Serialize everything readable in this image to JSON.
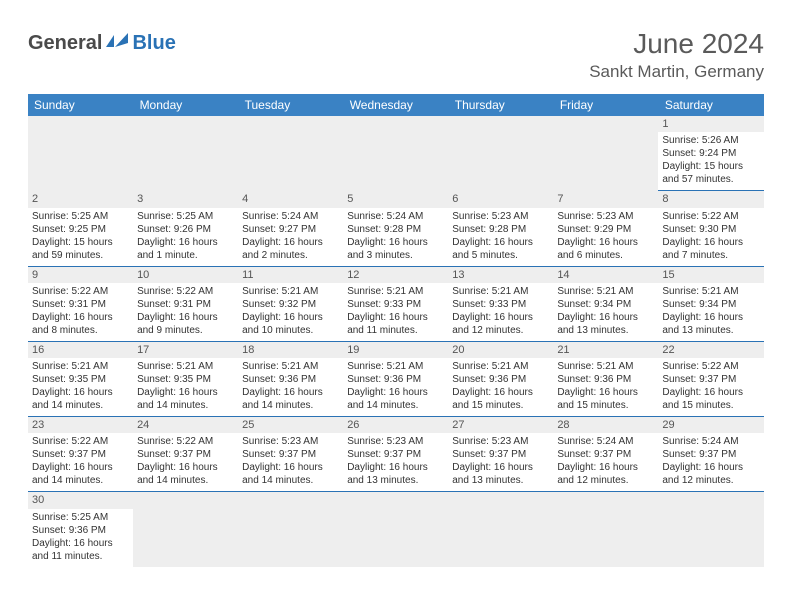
{
  "brand": {
    "general": "General",
    "blue": "Blue"
  },
  "title": "June 2024",
  "location": "Sankt Martin, Germany",
  "colors": {
    "header_bg": "#3a82c4",
    "header_text": "#ffffff",
    "accent": "#2a72b5",
    "day_bg": "#eeeeee",
    "text": "#333333",
    "title_text": "#5a5a5a"
  },
  "weekdays": [
    "Sunday",
    "Monday",
    "Tuesday",
    "Wednesday",
    "Thursday",
    "Friday",
    "Saturday"
  ],
  "weeks": [
    [
      null,
      null,
      null,
      null,
      null,
      null,
      {
        "n": "1",
        "sr": "5:26 AM",
        "ss": "9:24 PM",
        "dl": "15 hours and 57 minutes."
      }
    ],
    [
      {
        "n": "2",
        "sr": "5:25 AM",
        "ss": "9:25 PM",
        "dl": "15 hours and 59 minutes."
      },
      {
        "n": "3",
        "sr": "5:25 AM",
        "ss": "9:26 PM",
        "dl": "16 hours and 1 minute."
      },
      {
        "n": "4",
        "sr": "5:24 AM",
        "ss": "9:27 PM",
        "dl": "16 hours and 2 minutes."
      },
      {
        "n": "5",
        "sr": "5:24 AM",
        "ss": "9:28 PM",
        "dl": "16 hours and 3 minutes."
      },
      {
        "n": "6",
        "sr": "5:23 AM",
        "ss": "9:28 PM",
        "dl": "16 hours and 5 minutes."
      },
      {
        "n": "7",
        "sr": "5:23 AM",
        "ss": "9:29 PM",
        "dl": "16 hours and 6 minutes."
      },
      {
        "n": "8",
        "sr": "5:22 AM",
        "ss": "9:30 PM",
        "dl": "16 hours and 7 minutes."
      }
    ],
    [
      {
        "n": "9",
        "sr": "5:22 AM",
        "ss": "9:31 PM",
        "dl": "16 hours and 8 minutes."
      },
      {
        "n": "10",
        "sr": "5:22 AM",
        "ss": "9:31 PM",
        "dl": "16 hours and 9 minutes."
      },
      {
        "n": "11",
        "sr": "5:21 AM",
        "ss": "9:32 PM",
        "dl": "16 hours and 10 minutes."
      },
      {
        "n": "12",
        "sr": "5:21 AM",
        "ss": "9:33 PM",
        "dl": "16 hours and 11 minutes."
      },
      {
        "n": "13",
        "sr": "5:21 AM",
        "ss": "9:33 PM",
        "dl": "16 hours and 12 minutes."
      },
      {
        "n": "14",
        "sr": "5:21 AM",
        "ss": "9:34 PM",
        "dl": "16 hours and 13 minutes."
      },
      {
        "n": "15",
        "sr": "5:21 AM",
        "ss": "9:34 PM",
        "dl": "16 hours and 13 minutes."
      }
    ],
    [
      {
        "n": "16",
        "sr": "5:21 AM",
        "ss": "9:35 PM",
        "dl": "16 hours and 14 minutes."
      },
      {
        "n": "17",
        "sr": "5:21 AM",
        "ss": "9:35 PM",
        "dl": "16 hours and 14 minutes."
      },
      {
        "n": "18",
        "sr": "5:21 AM",
        "ss": "9:36 PM",
        "dl": "16 hours and 14 minutes."
      },
      {
        "n": "19",
        "sr": "5:21 AM",
        "ss": "9:36 PM",
        "dl": "16 hours and 14 minutes."
      },
      {
        "n": "20",
        "sr": "5:21 AM",
        "ss": "9:36 PM",
        "dl": "16 hours and 15 minutes."
      },
      {
        "n": "21",
        "sr": "5:21 AM",
        "ss": "9:36 PM",
        "dl": "16 hours and 15 minutes."
      },
      {
        "n": "22",
        "sr": "5:22 AM",
        "ss": "9:37 PM",
        "dl": "16 hours and 15 minutes."
      }
    ],
    [
      {
        "n": "23",
        "sr": "5:22 AM",
        "ss": "9:37 PM",
        "dl": "16 hours and 14 minutes."
      },
      {
        "n": "24",
        "sr": "5:22 AM",
        "ss": "9:37 PM",
        "dl": "16 hours and 14 minutes."
      },
      {
        "n": "25",
        "sr": "5:23 AM",
        "ss": "9:37 PM",
        "dl": "16 hours and 14 minutes."
      },
      {
        "n": "26",
        "sr": "5:23 AM",
        "ss": "9:37 PM",
        "dl": "16 hours and 13 minutes."
      },
      {
        "n": "27",
        "sr": "5:23 AM",
        "ss": "9:37 PM",
        "dl": "16 hours and 13 minutes."
      },
      {
        "n": "28",
        "sr": "5:24 AM",
        "ss": "9:37 PM",
        "dl": "16 hours and 12 minutes."
      },
      {
        "n": "29",
        "sr": "5:24 AM",
        "ss": "9:37 PM",
        "dl": "16 hours and 12 minutes."
      }
    ],
    [
      {
        "n": "30",
        "sr": "5:25 AM",
        "ss": "9:36 PM",
        "dl": "16 hours and 11 minutes."
      },
      null,
      null,
      null,
      null,
      null,
      null
    ]
  ],
  "labels": {
    "sunrise": "Sunrise:",
    "sunset": "Sunset:",
    "daylight": "Daylight:"
  }
}
